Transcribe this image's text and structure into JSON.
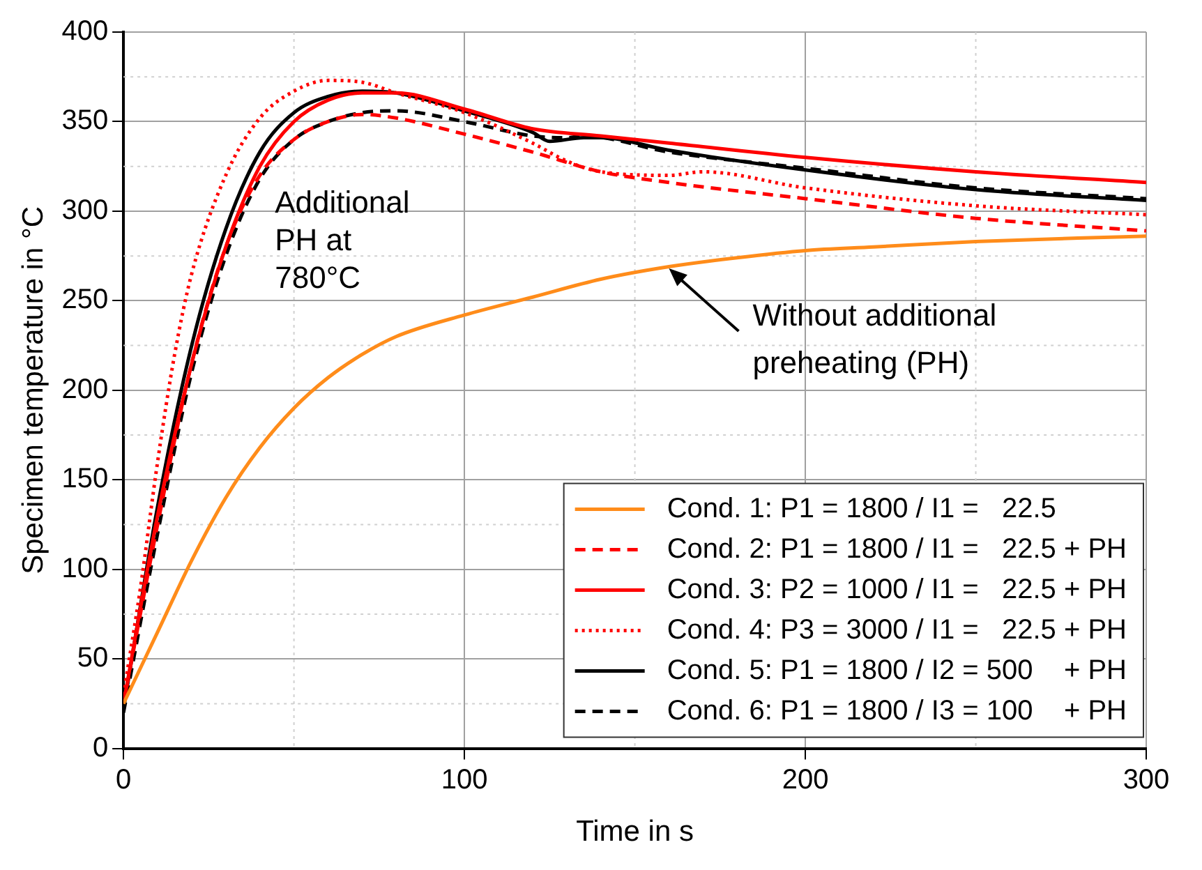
{
  "chart_data": {
    "type": "line",
    "xlabel": "Time in s",
    "ylabel": "Specimen temperature in °C",
    "xlim": [
      0,
      300
    ],
    "xticks": [
      0,
      100,
      200,
      300
    ],
    "ylim": [
      0,
      400
    ],
    "yticks": [
      0,
      50,
      100,
      150,
      200,
      250,
      300,
      350,
      400
    ],
    "grid": true,
    "legend": "bottom right",
    "marker": "none",
    "annotations": [
      "Additional PH at 780°C",
      {
        "text": "Without additional preheating (PH)",
        "x": 160,
        "y": 268
      }
    ],
    "series": [
      {
        "name": "Cond. 1: P1 = 1800 / I1 =   22.5",
        "color": "#ff8c1a",
        "line_style": "solid",
        "x": [
          0,
          10,
          20,
          30,
          40,
          50,
          60,
          70,
          80,
          100,
          120,
          140,
          160,
          180,
          200,
          220,
          250,
          280,
          300
        ],
        "values": [
          25,
          65,
          105,
          140,
          168,
          190,
          207,
          220,
          230,
          242,
          252,
          262,
          269,
          274,
          278,
          280,
          283,
          285,
          286
        ]
      },
      {
        "name": "Cond. 2: P1 = 1800 / I1 =   22.5 + PH",
        "color": "#ff0000",
        "line_style": "dashed",
        "x": [
          0,
          10,
          20,
          30,
          40,
          50,
          60,
          70,
          80,
          100,
          120,
          140,
          160,
          200,
          250,
          300
        ],
        "values": [
          25,
          125,
          215,
          280,
          320,
          340,
          350,
          354,
          352,
          343,
          333,
          322,
          316,
          307,
          296,
          289
        ]
      },
      {
        "name": "Cond. 3: P2 = 1000 / I1 =   22.5 + PH",
        "color": "#ff0000",
        "line_style": "solid",
        "x": [
          0,
          10,
          20,
          30,
          40,
          50,
          60,
          70,
          80,
          100,
          120,
          140,
          160,
          200,
          250,
          300
        ],
        "values": [
          25,
          130,
          215,
          280,
          325,
          350,
          362,
          366,
          366,
          357,
          346,
          342,
          338,
          330,
          322,
          316
        ]
      },
      {
        "name": "Cond. 4: P3 = 3000 / I1 =   22.5 + PH",
        "color": "#ff0000",
        "line_style": "dotted",
        "x": [
          0,
          5,
          10,
          15,
          20,
          30,
          40,
          50,
          60,
          70,
          80,
          100,
          120,
          130,
          140,
          160,
          170,
          200,
          250,
          300
        ],
        "values": [
          30,
          90,
          160,
          220,
          265,
          320,
          352,
          367,
          373,
          372,
          366,
          355,
          338,
          328,
          322,
          320,
          322,
          313,
          303,
          298
        ]
      },
      {
        "name": "Cond. 5: P1 = 1800 / I2 = 500    + PH",
        "color": "#000000",
        "line_style": "solid",
        "x": [
          0,
          10,
          20,
          30,
          40,
          50,
          60,
          70,
          80,
          100,
          120,
          125,
          135,
          140,
          160,
          200,
          250,
          300
        ],
        "values": [
          22,
          135,
          225,
          290,
          333,
          355,
          364,
          367,
          366,
          356,
          344,
          339,
          341,
          341,
          334,
          323,
          312,
          306
        ]
      },
      {
        "name": "Cond. 6: P1 = 1800 / I3 = 100    + PH",
        "color": "#000000",
        "line_style": "dashed",
        "x": [
          0,
          10,
          20,
          30,
          40,
          50,
          60,
          70,
          80,
          100,
          120,
          130,
          135,
          160,
          200,
          250,
          300
        ],
        "values": [
          20,
          120,
          210,
          275,
          318,
          340,
          350,
          355,
          356,
          350,
          342,
          341,
          342,
          333,
          324,
          313,
          307
        ]
      }
    ]
  }
}
